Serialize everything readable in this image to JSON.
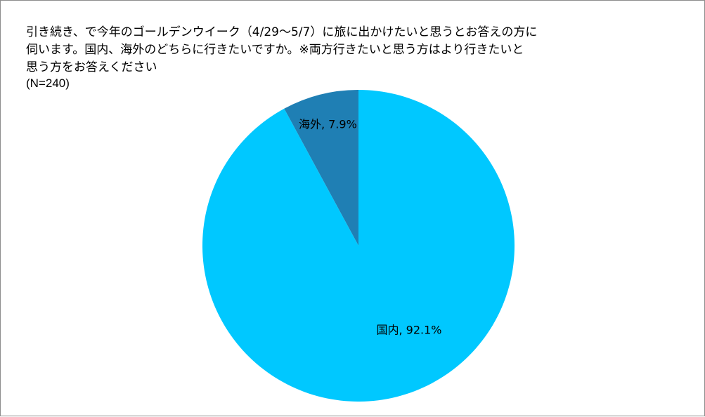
{
  "chart_data": {
    "type": "pie",
    "title": "引き続き、で今年のゴールデンウイーク（4/29〜5/7）に旅に出かけたいと思うとお答えの方に\n伺います。国内、海外のどちらに行きたいですか。※両方行きたいと思う方はより行きたいと\n思う方をお答えください",
    "subtitle": "(N=240)",
    "slices": [
      {
        "label": "海外",
        "value": 7.9,
        "data_label": "海外, 7.9%",
        "color": "#1f7fb4"
      },
      {
        "label": "国内",
        "value": 92.1,
        "data_label": "国内, 92.1%",
        "color": "#00c8ff"
      }
    ],
    "start": "12 o'clock",
    "direction": "counterclockwise-from-top for first slice",
    "legend": "none"
  }
}
